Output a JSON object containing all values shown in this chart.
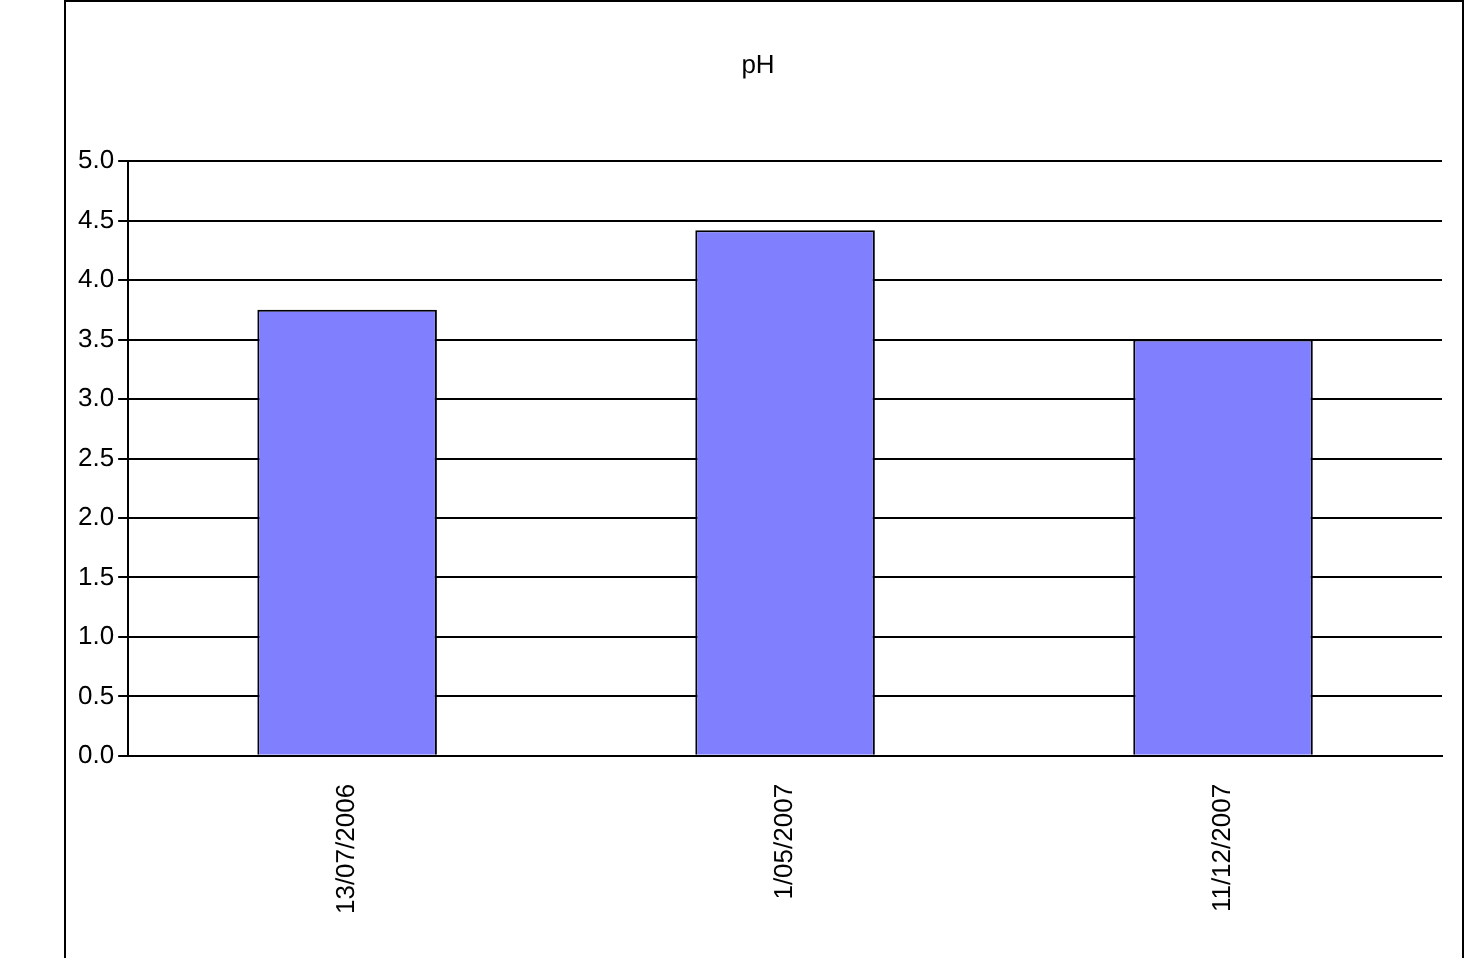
{
  "chart_data": {
    "type": "bar",
    "title": "pH",
    "categories": [
      "13/07/2006",
      "1/05/2007",
      "11/12/2007"
    ],
    "values": [
      3.75,
      4.42,
      3.5
    ],
    "color": "#8080ff",
    "ylim": [
      0,
      5
    ],
    "yticks": [
      {
        "value": 0,
        "label": "0.0"
      },
      0.5,
      {
        "value": 1,
        "label": "1.0"
      },
      1.5,
      {
        "value": 2,
        "label": "2.0"
      },
      2.5,
      {
        "value": 3,
        "label": "3.0"
      },
      3.5,
      {
        "value": 4,
        "label": "4.0"
      },
      4.5,
      {
        "value": 5,
        "label": "5.0"
      }
    ],
    "grid": "y",
    "legend": false
  }
}
